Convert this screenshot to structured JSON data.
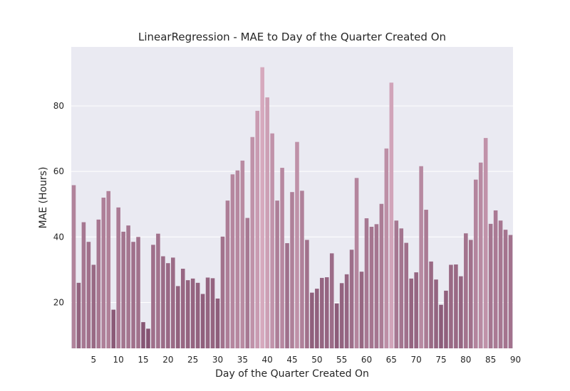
{
  "chart_data": {
    "type": "bar",
    "title": "LinearRegression - MAE to Day of the Quarter Created On",
    "xlabel": "Day of the Quarter Created On",
    "ylabel": "MAE (Hours)",
    "x_start": 1,
    "x_ticks": [
      5,
      10,
      15,
      20,
      25,
      30,
      35,
      40,
      45,
      50,
      55,
      60,
      65,
      70,
      75,
      80,
      85,
      90
    ],
    "y_ticks": [
      20,
      40,
      60,
      80
    ],
    "ylim": [
      6,
      98
    ],
    "grid": true,
    "background_color": "#eaeaf2",
    "grid_color": "#ffffff",
    "palette_low": "#855472",
    "palette_high": "#d6a9bd",
    "values": [
      55.8,
      26.0,
      44.5,
      38.5,
      31.5,
      45.3,
      52.0,
      54.0,
      17.8,
      49.0,
      41.6,
      43.5,
      38.5,
      40.0,
      14.0,
      12.0,
      37.6,
      41.0,
      34.1,
      32.0,
      33.7,
      25.0,
      30.3,
      26.8,
      27.3,
      26.0,
      22.6,
      27.6,
      27.4,
      21.2,
      40.1,
      51.1,
      59.1,
      60.3,
      63.3,
      45.8,
      70.5,
      78.5,
      91.8,
      82.6,
      71.6,
      51.1,
      61.1,
      38.1,
      53.7,
      69.0,
      54.1,
      39.1,
      23.0,
      24.2,
      27.5,
      27.7,
      35.0,
      19.7,
      25.9,
      28.6,
      36.1,
      58.0,
      29.4,
      45.7,
      43.1,
      43.9,
      50.1,
      67.0,
      87.1,
      45.0,
      42.6,
      38.2,
      27.3,
      29.2,
      61.6,
      48.3,
      32.5,
      27.0,
      19.3,
      23.6,
      31.5,
      31.6,
      28.0,
      41.1,
      39.1,
      57.5,
      62.7,
      70.2,
      44.0,
      48.1,
      45.0,
      42.2,
      40.6
    ]
  }
}
